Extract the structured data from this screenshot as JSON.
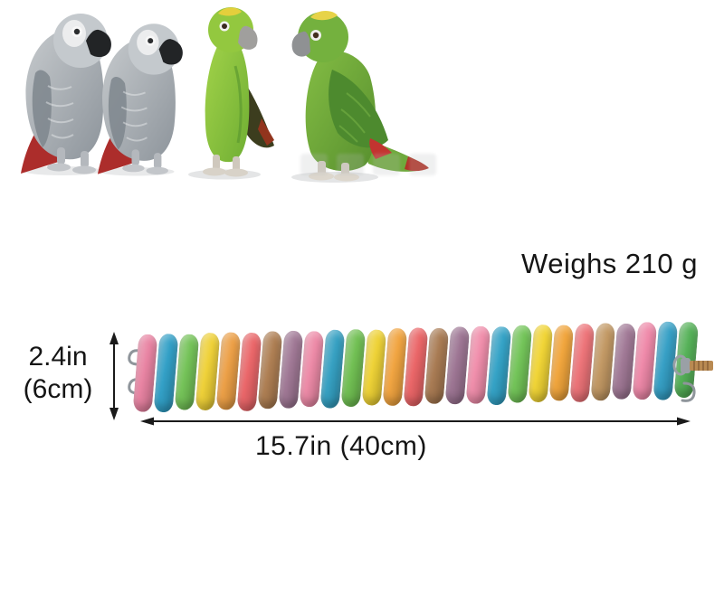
{
  "photo": {
    "parrots": [
      {
        "id": "african-grey-1",
        "label": "African grey parrot",
        "body_color": "#9aa1a7",
        "tail_color": "#ac2d2b"
      },
      {
        "id": "african-grey-2",
        "label": "African grey parrot",
        "body_color": "#9aa1a7",
        "tail_color": "#ac2d2b"
      },
      {
        "id": "amazon-green-1",
        "label": "Yellow-crowned amazon parrot",
        "body_color": "#8dc63f",
        "crown_color": "#e4cf3c"
      },
      {
        "id": "amazon-green-2",
        "label": "Yellow-crowned amazon parrot",
        "body_color": "#74b13e",
        "crown_color": "#e7d348"
      }
    ]
  },
  "annotations": {
    "weight": "Weighs 210 g",
    "height_in": "2.4in",
    "height_cm": "(6cm)",
    "length": "15.7in (40cm)"
  },
  "ladder": {
    "rung_count": 27,
    "rung_colors": [
      "#e77f9f",
      "#2b9cc4",
      "#6fc052",
      "#eecf31",
      "#eb9c40",
      "#e96164",
      "#ab7a4d",
      "#9c7391",
      "#ec86a4",
      "#2f9dc0",
      "#6cbd4d",
      "#edd02f",
      "#f0a13a",
      "#e96062",
      "#a5764d",
      "#99708f",
      "#ef8aa8",
      "#2d9fc4",
      "#6ec253",
      "#f0d32f",
      "#f0a236",
      "#ec6f74",
      "#c0955f",
      "#9d7492",
      "#ee85a6",
      "#2f9cc3",
      "#4fae52"
    ],
    "left_hardware": "chain hooks",
    "right_hardware": "wing nut, threaded screw and hook"
  },
  "palette": {
    "background": "#ffffff",
    "text": "#151515",
    "arrow": "#1a1a1a",
    "metal": "#8f959b",
    "screw": "#b98a52"
  }
}
